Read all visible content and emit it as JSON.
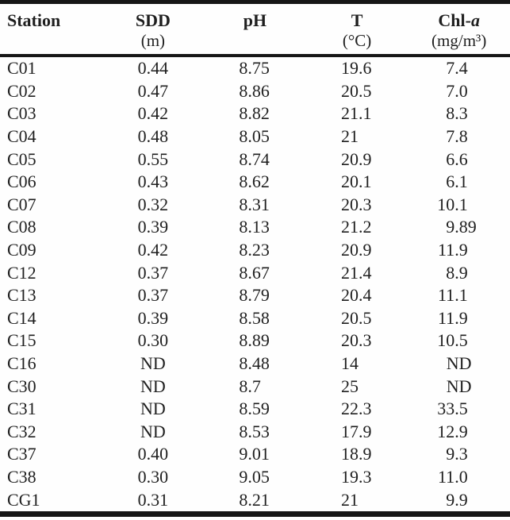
{
  "table": {
    "columns": [
      {
        "key": "station",
        "label": "Station",
        "unit": ""
      },
      {
        "key": "sdd",
        "label": "SDD",
        "unit": "(m)"
      },
      {
        "key": "ph",
        "label": "pH",
        "unit": ""
      },
      {
        "key": "t",
        "label": "T",
        "unit": "(°C)"
      },
      {
        "key": "chla",
        "label": "Chl-",
        "label_italic": "a",
        "unit": "(mg/m³)"
      }
    ],
    "rows": [
      {
        "station": "C01",
        "sdd": "0.44",
        "ph": "8.75",
        "t": "19.6",
        "chla": "7.4"
      },
      {
        "station": "C02",
        "sdd": "0.47",
        "ph": "8.86",
        "t": "20.5",
        "chla": "7.0"
      },
      {
        "station": "C03",
        "sdd": "0.42",
        "ph": "8.82",
        "t": "21.1",
        "chla": "8.3"
      },
      {
        "station": "C04",
        "sdd": "0.48",
        "ph": "8.05",
        "t": "21",
        "chla": "7.8"
      },
      {
        "station": "C05",
        "sdd": "0.55",
        "ph": "8.74",
        "t": "20.9",
        "chla": "6.6"
      },
      {
        "station": "C06",
        "sdd": "0.43",
        "ph": "8.62",
        "t": "20.1",
        "chla": "6.1"
      },
      {
        "station": "C07",
        "sdd": "0.32",
        "ph": "8.31",
        "t": "20.3",
        "chla": "10.1"
      },
      {
        "station": "C08",
        "sdd": "0.39",
        "ph": "8.13",
        "t": "21.2",
        "chla": "9.89"
      },
      {
        "station": "C09",
        "sdd": "0.42",
        "ph": "8.23",
        "t": "20.9",
        "chla": "11.9"
      },
      {
        "station": "C12",
        "sdd": "0.37",
        "ph": "8.67",
        "t": "21.4",
        "chla": "8.9"
      },
      {
        "station": "C13",
        "sdd": "0.37",
        "ph": "8.79",
        "t": "20.4",
        "chla": "11.1"
      },
      {
        "station": "C14",
        "sdd": "0.39",
        "ph": "8.58",
        "t": "20.5",
        "chla": "11.9"
      },
      {
        "station": "C15",
        "sdd": "0.30",
        "ph": "8.89",
        "t": "20.3",
        "chla": "10.5"
      },
      {
        "station": "C16",
        "sdd": "ND",
        "ph": "8.48",
        "t": "14",
        "chla": "ND"
      },
      {
        "station": "C30",
        "sdd": "ND",
        "ph": "8.7",
        "t": "25",
        "chla": "ND"
      },
      {
        "station": "C31",
        "sdd": "ND",
        "ph": "8.59",
        "t": "22.3",
        "chla": "33.5"
      },
      {
        "station": "C32",
        "sdd": "ND",
        "ph": "8.53",
        "t": "17.9",
        "chla": "12.9"
      },
      {
        "station": "C37",
        "sdd": "0.40",
        "ph": "9.01",
        "t": "18.9",
        "chla": "9.3"
      },
      {
        "station": "C38",
        "sdd": "0.30",
        "ph": "9.05",
        "t": "19.3",
        "chla": "11.0"
      },
      {
        "station": "CG1",
        "sdd": "0.31",
        "ph": "8.21",
        "t": "21",
        "chla": "9.9"
      }
    ]
  },
  "colors": {
    "rule": "#161616",
    "text": "#1f1f1f",
    "background": "#fefefe"
  }
}
